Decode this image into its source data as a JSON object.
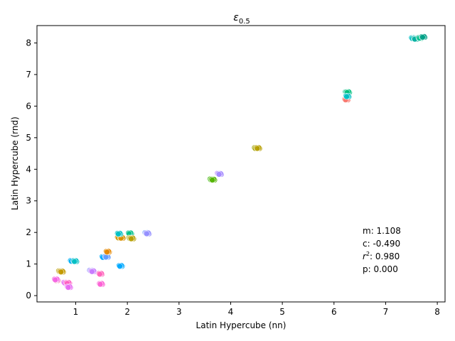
{
  "chart_data": {
    "type": "scatter",
    "title": "ε",
    "title_subscript": "0.5",
    "xlabel": "Latin Hypercube (nn)",
    "ylabel": "Latin Hypercube (rnd)",
    "xlim": [
      0.25,
      8.15
    ],
    "ylim": [
      -0.2,
      8.55
    ],
    "xticks": [
      "1",
      "2",
      "3",
      "4",
      "5",
      "6",
      "7",
      "8"
    ],
    "yticks": [
      "0",
      "1",
      "2",
      "3",
      "4",
      "5",
      "6",
      "7",
      "8"
    ],
    "grid": false,
    "legend": "none",
    "annotations": {
      "m": "m: 1.108",
      "c": "c: -0.490",
      "r2_prefix": "r",
      "r2_sup": "2",
      "r2_value": ": 0.980",
      "p": "p: 0.000"
    },
    "clusters": [
      {
        "x": 0.63,
        "y": 0.49,
        "color": "#f8766d"
      },
      {
        "x": 0.62,
        "y": 0.51,
        "color": "#f564e3"
      },
      {
        "x": 0.7,
        "y": 0.77,
        "color": "#b79f00"
      },
      {
        "x": 0.73,
        "y": 0.76,
        "color": "#c49a00"
      },
      {
        "x": 0.8,
        "y": 0.41,
        "color": "#e76bf3"
      },
      {
        "x": 0.85,
        "y": 0.4,
        "color": "#ff61c3"
      },
      {
        "x": 0.87,
        "y": 0.27,
        "color": "#e76bf3"
      },
      {
        "x": 0.93,
        "y": 1.1,
        "color": "#00b0f6"
      },
      {
        "x": 0.99,
        "y": 1.09,
        "color": "#00bfc4"
      },
      {
        "x": 1.3,
        "y": 0.79,
        "color": "#9590ff"
      },
      {
        "x": 1.33,
        "y": 0.77,
        "color": "#c77cff"
      },
      {
        "x": 1.48,
        "y": 0.69,
        "color": "#ff62bc"
      },
      {
        "x": 1.49,
        "y": 0.37,
        "color": "#fc61d5"
      },
      {
        "x": 1.54,
        "y": 1.22,
        "color": "#00a9ff"
      },
      {
        "x": 1.6,
        "y": 1.23,
        "color": "#619cff"
      },
      {
        "x": 1.62,
        "y": 1.39,
        "color": "#e58700"
      },
      {
        "x": 1.84,
        "y": 1.84,
        "color": "#c99800"
      },
      {
        "x": 1.89,
        "y": 1.83,
        "color": "#d89000"
      },
      {
        "x": 1.84,
        "y": 1.96,
        "color": "#00bfc4"
      },
      {
        "x": 1.87,
        "y": 0.94,
        "color": "#00a9ff"
      },
      {
        "x": 2.05,
        "y": 1.97,
        "color": "#00c08b"
      },
      {
        "x": 2.06,
        "y": 1.82,
        "color": "#a3a500"
      },
      {
        "x": 2.09,
        "y": 1.81,
        "color": "#b79f00"
      },
      {
        "x": 2.37,
        "y": 1.98,
        "color": "#619cff"
      },
      {
        "x": 2.39,
        "y": 1.97,
        "color": "#9590ff"
      },
      {
        "x": 3.63,
        "y": 3.68,
        "color": "#39b600"
      },
      {
        "x": 3.66,
        "y": 3.67,
        "color": "#53b400"
      },
      {
        "x": 3.77,
        "y": 3.86,
        "color": "#c77cff"
      },
      {
        "x": 3.79,
        "y": 3.85,
        "color": "#a58aff"
      },
      {
        "x": 4.49,
        "y": 4.67,
        "color": "#a3a500"
      },
      {
        "x": 4.53,
        "y": 4.67,
        "color": "#b79f00"
      },
      {
        "x": 6.24,
        "y": 6.21,
        "color": "#f8766d"
      },
      {
        "x": 6.25,
        "y": 6.44,
        "color": "#00c08b"
      },
      {
        "x": 6.27,
        "y": 6.44,
        "color": "#00bf7d"
      },
      {
        "x": 6.26,
        "y": 6.31,
        "color": "#00bfc4"
      },
      {
        "x": 7.53,
        "y": 8.15,
        "color": "#00bfc4"
      },
      {
        "x": 7.58,
        "y": 8.13,
        "color": "#00b0a0"
      },
      {
        "x": 7.67,
        "y": 8.16,
        "color": "#00c08b"
      },
      {
        "x": 7.73,
        "y": 8.19,
        "color": "#00a087"
      }
    ]
  }
}
